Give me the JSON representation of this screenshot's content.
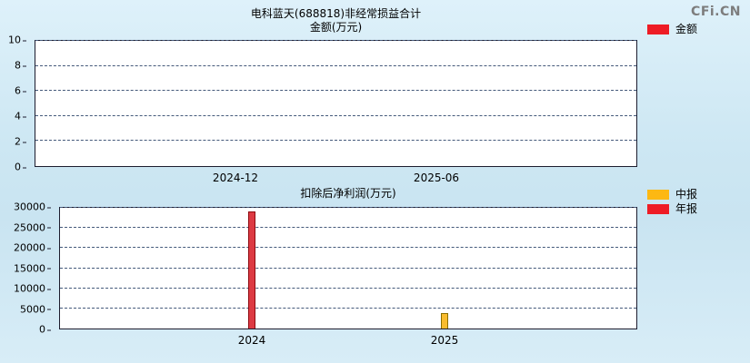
{
  "watermark": {
    "text": "CFi.CN"
  },
  "chart_data": [
    {
      "type": "bar",
      "title": "电科蓝天(688818)非经常损益合计",
      "subtitle": "金额(万元)",
      "xlabel": "",
      "ylabel": "",
      "categories": [
        "2024-12",
        "2025-06"
      ],
      "series": [
        {
          "name": "金额",
          "color": "#e8111d",
          "edge": "#8f0a10",
          "values": [
            0,
            0
          ]
        }
      ],
      "ylim": [
        0,
        10
      ],
      "yticks": [
        0,
        2,
        4,
        6,
        8,
        10
      ],
      "grid": true,
      "legend_position": "right",
      "legend": [
        {
          "label": "金额",
          "color": "#ee1c25"
        }
      ]
    },
    {
      "type": "bar",
      "title": "扣除后净利润(万元)",
      "xlabel": "",
      "ylabel": "",
      "categories": [
        "2024",
        "2025"
      ],
      "series": [
        {
          "name": "年报",
          "color": "#dd3a43",
          "edge": "#8f0a10",
          "values": [
            29000,
            null
          ]
        },
        {
          "name": "中报",
          "color": "#f9bc2e",
          "edge": "#8a6d00",
          "values": [
            null,
            3900
          ]
        }
      ],
      "ylim": [
        0,
        30000
      ],
      "yticks": [
        0,
        5000,
        10000,
        15000,
        20000,
        25000,
        30000
      ],
      "grid": true,
      "legend_position": "right",
      "legend": [
        {
          "label": "中报",
          "color": "#fdb813"
        },
        {
          "label": "年报",
          "color": "#ee1c25"
        }
      ]
    }
  ]
}
